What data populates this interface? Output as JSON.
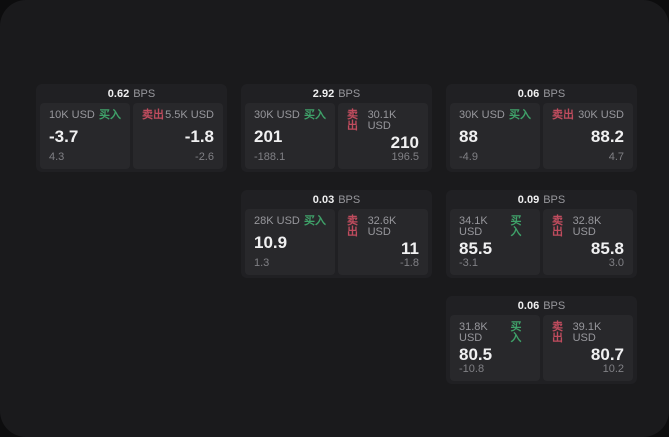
{
  "theme": {
    "bg_outer": "#0d0d0e",
    "panel_bg": "#1a1a1c",
    "card_bg": "#202023",
    "tile_bg": "#28282b",
    "text_primary": "#f0f0f1",
    "text_muted": "#97979c",
    "text_dim": "#808085",
    "buy_color": "#3fa169",
    "sell_color": "#c04c5e"
  },
  "labels": {
    "bps_suffix": "BPS",
    "buy": "买入",
    "sell": "卖出"
  },
  "cards": [
    {
      "row": 1,
      "col": 1,
      "bps": "0.62",
      "buy": {
        "amount": "10K USD",
        "price": "-3.7",
        "delta": "4.3"
      },
      "sell": {
        "amount": "5.5K USD",
        "price": "-1.8",
        "delta": "-2.6"
      }
    },
    {
      "row": 1,
      "col": 2,
      "bps": "2.92",
      "buy": {
        "amount": "30K USD",
        "price": "201",
        "delta": "-188.1"
      },
      "sell": {
        "amount": "30.1K USD",
        "price": "210",
        "delta": "196.5"
      }
    },
    {
      "row": 1,
      "col": 3,
      "bps": "0.06",
      "buy": {
        "amount": "30K USD",
        "price": "88",
        "delta": "-4.9"
      },
      "sell": {
        "amount": "30K USD",
        "price": "88.2",
        "delta": "4.7"
      }
    },
    {
      "row": 2,
      "col": 2,
      "bps": "0.03",
      "buy": {
        "amount": "28K USD",
        "price": "10.9",
        "delta": "1.3"
      },
      "sell": {
        "amount": "32.6K USD",
        "price": "11",
        "delta": "-1.8"
      }
    },
    {
      "row": 2,
      "col": 3,
      "bps": "0.09",
      "buy": {
        "amount": "34.1K USD",
        "price": "85.5",
        "delta": "-3.1"
      },
      "sell": {
        "amount": "32.8K USD",
        "price": "85.8",
        "delta": "3.0"
      }
    },
    {
      "row": 3,
      "col": 3,
      "bps": "0.06",
      "buy": {
        "amount": "31.8K USD",
        "price": "80.5",
        "delta": "-10.8"
      },
      "sell": {
        "amount": "39.1K USD",
        "price": "80.7",
        "delta": "10.2"
      }
    }
  ]
}
